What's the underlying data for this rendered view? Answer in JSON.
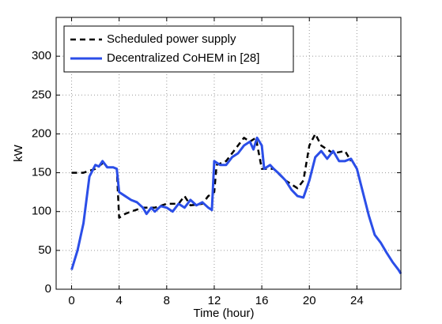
{
  "chart_data": {
    "type": "line",
    "xlabel": "Time (hour)",
    "ylabel": "kW",
    "xlim": [
      -1.3,
      27.7
    ],
    "ylim": [
      0,
      350
    ],
    "xticks": [
      0,
      4,
      8,
      12,
      16,
      20,
      24
    ],
    "yticks": [
      0,
      50,
      100,
      150,
      200,
      250,
      300
    ],
    "grid": true,
    "legend": "upper left",
    "series": [
      {
        "name": "Scheduled power supply",
        "color": "#000000",
        "dash": true,
        "x": [
          0,
          1,
          2,
          2.6,
          3,
          3.5,
          3.8,
          4,
          4.5,
          5,
          6,
          7,
          8,
          9,
          9.5,
          10,
          11,
          11.5,
          12,
          12.2,
          13,
          14,
          14.5,
          15,
          15.5,
          16,
          17,
          18,
          19,
          19.5,
          20,
          20.5,
          21,
          22,
          23,
          23.5
        ],
        "values": [
          150,
          150,
          155,
          162,
          157,
          157,
          155,
          92,
          97,
          100,
          105,
          105,
          110,
          110,
          120,
          108,
          110,
          120,
          125,
          160,
          165,
          185,
          195,
          190,
          195,
          155,
          155,
          140,
          130,
          140,
          185,
          200,
          185,
          175,
          178,
          165
        ]
      },
      {
        "name": "Decentralized CoHEM in [28]",
        "color": "#2b4ee8",
        "dash": false,
        "x": [
          0,
          0.5,
          1,
          1.5,
          2,
          2.3,
          2.6,
          3,
          3.5,
          3.8,
          4,
          4.5,
          5,
          5.5,
          6,
          6.3,
          6.7,
          7,
          7.5,
          8,
          8.5,
          9,
          9.5,
          10,
          10.5,
          11,
          11.5,
          11.8,
          12,
          12.5,
          13,
          13.5,
          14,
          14.5,
          15,
          15.3,
          15.6,
          16,
          16.2,
          16.7,
          17,
          17.5,
          18,
          18.5,
          19,
          19.5,
          20,
          20.5,
          21,
          21.5,
          22,
          22.5,
          23,
          23.5,
          24,
          24.5,
          25,
          25.5,
          26,
          26.5,
          27,
          27.5,
          27.7
        ],
        "values": [
          25,
          50,
          85,
          145,
          160,
          158,
          165,
          157,
          157,
          155,
          125,
          120,
          115,
          112,
          105,
          97,
          105,
          100,
          107,
          105,
          100,
          110,
          105,
          115,
          108,
          112,
          105,
          102,
          165,
          160,
          160,
          170,
          175,
          185,
          190,
          180,
          195,
          185,
          155,
          160,
          155,
          148,
          140,
          128,
          120,
          118,
          140,
          170,
          178,
          168,
          178,
          165,
          165,
          168,
          155,
          125,
          95,
          70,
          60,
          47,
          35,
          25,
          20
        ]
      }
    ]
  }
}
